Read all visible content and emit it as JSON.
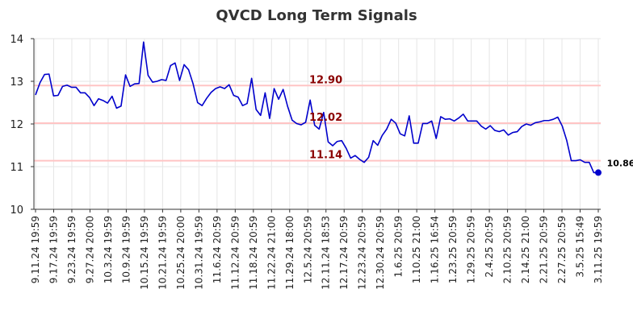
{
  "chart_data": {
    "type": "line",
    "title": "QVCD Long Term Signals",
    "ylim": [
      10,
      14
    ],
    "yticks": [
      10,
      11,
      12,
      13,
      14
    ],
    "grid": true,
    "line_color": "#0000cc",
    "level_line_color": "#ffc4c4",
    "level_label_color": "#8b0000",
    "x_tick_labels": [
      "9.11.24 19:59",
      "9.17.24 19:59",
      "9.23.24 19:59",
      "9.27.24 20:00",
      "10.3.24 19:59",
      "10.9.24 19:59",
      "10.15.24 19:59",
      "10.21.24 19:59",
      "10.25.24 20:00",
      "10.31.24 19:59",
      "11.6.24 20:59",
      "11.12.24 20:59",
      "11.18.24 20:59",
      "11.22.24 21:00",
      "11.29.24 18:00",
      "12.5.24 20:59",
      "12.11.24 18:53",
      "12.17.24 20:59",
      "12.23.24 20:59",
      "12.30.24 20:59",
      "1.6.25 20:59",
      "1.10.25 21:00",
      "1.16.25 16:54",
      "1.23.25 20:59",
      "1.29.25 20:59",
      "2.4.25 20:59",
      "2.10.25 20:59",
      "2.14.25 21:00",
      "2.21.25 20:59",
      "2.27.25 20:59",
      "3.5.25 15:49",
      "3.11.25 19:59"
    ],
    "series": [
      {
        "values": [
          12.68,
          12.97,
          13.16,
          13.17,
          12.66,
          12.67,
          12.88,
          12.91,
          12.86,
          12.86,
          12.73,
          12.73,
          12.62,
          12.43,
          12.59,
          12.55,
          12.49,
          12.65,
          12.37,
          12.42,
          13.15,
          12.88,
          12.94,
          12.95,
          13.92,
          13.14,
          12.98,
          13.0,
          13.04,
          13.02,
          13.37,
          13.43,
          13.02,
          13.39,
          13.27,
          12.94,
          12.5,
          12.43,
          12.6,
          12.74,
          12.83,
          12.87,
          12.83,
          12.92,
          12.67,
          12.63,
          12.43,
          12.48,
          13.07,
          12.34,
          12.2,
          12.73,
          12.13,
          12.83,
          12.58,
          12.81,
          12.41,
          12.09,
          12.01,
          11.98,
          12.04,
          12.56,
          11.97,
          11.88,
          12.27,
          11.58,
          11.49,
          11.59,
          11.61,
          11.43,
          11.2,
          11.26,
          11.17,
          11.1,
          11.22,
          11.61,
          11.5,
          11.73,
          11.88,
          12.11,
          12.02,
          11.77,
          11.72,
          12.19,
          11.55,
          11.55,
          12.01,
          12.01,
          12.07,
          11.66,
          12.17,
          12.11,
          12.12,
          12.07,
          12.14,
          12.23,
          12.07,
          12.07,
          12.07,
          11.95,
          11.88,
          11.96,
          11.85,
          11.82,
          11.86,
          11.74,
          11.8,
          11.82,
          11.94,
          12.0,
          11.97,
          12.03,
          12.05,
          12.08,
          12.08,
          12.11,
          12.16,
          11.95,
          11.61,
          11.14,
          11.14,
          11.16,
          11.1,
          11.1,
          10.86,
          10.86
        ]
      }
    ],
    "levels": [
      {
        "value": 12.9,
        "label": "12.90"
      },
      {
        "value": 12.02,
        "label": "12.02"
      },
      {
        "value": 11.14,
        "label": "11.14"
      }
    ],
    "last_value_label": "10.86"
  }
}
